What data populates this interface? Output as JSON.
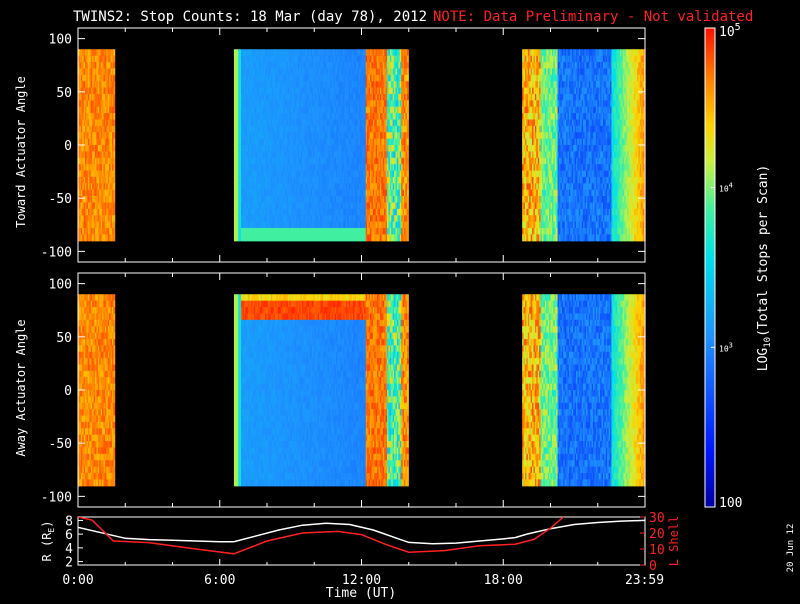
{
  "header": {
    "title": "TWINS2: Stop Counts: 18 Mar (day  78), 2012",
    "note": "NOTE: Data Preliminary - Not validated"
  },
  "side_date": "20 Jun 12",
  "colors": {
    "background": "#000000",
    "axes": "#ffffff",
    "note": "#ff2020",
    "r_line": "#ffffff",
    "lshell_line": "#ff2020"
  },
  "chart_data": [
    {
      "type": "heatmap",
      "name": "toward",
      "ylabel": "Toward Actuator Angle",
      "ylim": [
        -110,
        110
      ],
      "yticks": [
        100,
        50,
        0,
        -50,
        -100
      ],
      "data_ylim": [
        -90,
        90
      ],
      "xlim_hours": [
        0,
        24
      ],
      "coverage_hours": [
        [
          0,
          1.55
        ],
        [
          6.6,
          14.0
        ],
        [
          18.8,
          24.0
        ]
      ],
      "scale": "log",
      "color_range": [
        100,
        100000
      ]
    },
    {
      "type": "heatmap",
      "name": "away",
      "ylabel": "Away Actuator Angle",
      "ylim": [
        -110,
        110
      ],
      "yticks": [
        100,
        50,
        0,
        -50,
        -100
      ],
      "data_ylim": [
        -90,
        90
      ],
      "xlim_hours": [
        0,
        24
      ],
      "coverage_hours": [
        [
          0,
          1.55
        ],
        [
          6.6,
          14.0
        ],
        [
          18.8,
          24.0
        ]
      ],
      "scale": "log",
      "color_range": [
        100,
        100000
      ]
    },
    {
      "type": "line",
      "name": "orbit",
      "xlabel": "Time (UT)",
      "xticks": [
        "0:00",
        "6:00",
        "12:00",
        "18:00",
        "23:59"
      ],
      "xtick_hours": [
        0,
        6,
        12,
        18,
        23.98
      ],
      "ylabel_left": "R (R",
      "ylabel_left_sub": "E",
      "ylabel_left_end": ")",
      "ylim_left": [
        1.5,
        8.5
      ],
      "yticks_left": [
        8,
        6,
        4,
        2
      ],
      "ylabel_right": "L Shell",
      "ylim_right": [
        0,
        30
      ],
      "yticks_right": [
        30,
        20,
        10,
        0
      ],
      "series": [
        {
          "axis": "left",
          "x": [
            0,
            1,
            2,
            3,
            4,
            5,
            6,
            6.6,
            7.5,
            8.5,
            9.5,
            10.5,
            11.5,
            12.5,
            13.5,
            14,
            15,
            16,
            17,
            18,
            18.5,
            19,
            20,
            21,
            22,
            23,
            23.98
          ],
          "y": [
            7.0,
            6.2,
            5.4,
            5.2,
            5.1,
            5.0,
            4.9,
            4.9,
            5.7,
            6.6,
            7.3,
            7.6,
            7.4,
            6.6,
            5.4,
            4.8,
            4.6,
            4.7,
            5.0,
            5.3,
            5.5,
            6.0,
            6.8,
            7.4,
            7.7,
            7.9,
            8.0
          ]
        },
        {
          "axis": "right",
          "x": [
            0,
            0.6,
            1.5,
            3,
            5,
            6.6,
            8,
            9.5,
            11,
            12,
            13,
            14,
            15.5,
            17,
            18.5,
            19.3,
            20,
            20.7
          ],
          "y": [
            30,
            28,
            15,
            14,
            10,
            7,
            15,
            20,
            21,
            19,
            13,
            8,
            9,
            12,
            13,
            16,
            23,
            32
          ]
        }
      ]
    },
    {
      "type": "colorbar",
      "name": "colorbar",
      "label": "LOG",
      "label_sub": "10",
      "label_end": "(Total Stops per Scan)",
      "scale": "log",
      "range": [
        100,
        100000
      ],
      "tick_labels": [
        {
          "value": 100000,
          "base": "10",
          "exp": "5",
          "size": "big"
        },
        {
          "value": 10000,
          "base": "10",
          "exp": "4",
          "size": "small"
        },
        {
          "value": 1000,
          "base": "10",
          "exp": "3",
          "size": "small"
        },
        {
          "value": 100,
          "base": "100",
          "exp": "",
          "size": "big"
        }
      ]
    }
  ]
}
